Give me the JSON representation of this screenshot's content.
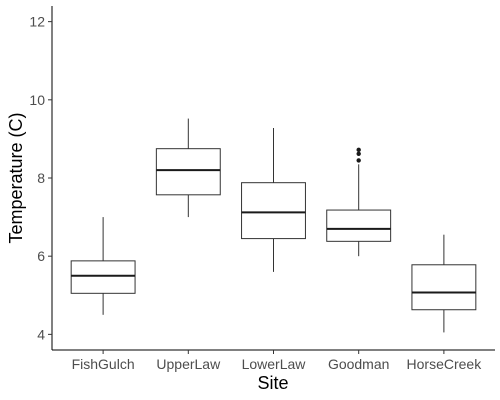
{
  "chart_data": {
    "type": "boxplot",
    "xlabel": "Site",
    "ylabel": "Temperature (C)",
    "ylim": [
      3.6,
      12.4
    ],
    "yticks": [
      4,
      6,
      8,
      10,
      12
    ],
    "grid": false,
    "legend": "none",
    "categories": [
      "FishGulch",
      "UpperLaw",
      "LowerLaw",
      "Goodman",
      "HorseCreek"
    ],
    "boxes": [
      {
        "site": "FishGulch",
        "min": 4.5,
        "q1": 5.05,
        "median": 5.5,
        "q3": 5.88,
        "max": 7.0,
        "outliers": []
      },
      {
        "site": "UpperLaw",
        "min": 7.0,
        "q1": 7.57,
        "median": 8.2,
        "q3": 8.75,
        "max": 9.52,
        "outliers": []
      },
      {
        "site": "LowerLaw",
        "min": 5.6,
        "q1": 6.45,
        "median": 7.12,
        "q3": 7.88,
        "max": 9.28,
        "outliers": []
      },
      {
        "site": "Goodman",
        "min": 6.0,
        "q1": 6.38,
        "median": 6.7,
        "q3": 7.18,
        "max": 8.35,
        "outliers": [
          8.45,
          8.62,
          8.72
        ]
      },
      {
        "site": "HorseCreek",
        "min": 4.05,
        "q1": 4.63,
        "median": 5.07,
        "q3": 5.78,
        "max": 6.55,
        "outliers": []
      }
    ]
  }
}
